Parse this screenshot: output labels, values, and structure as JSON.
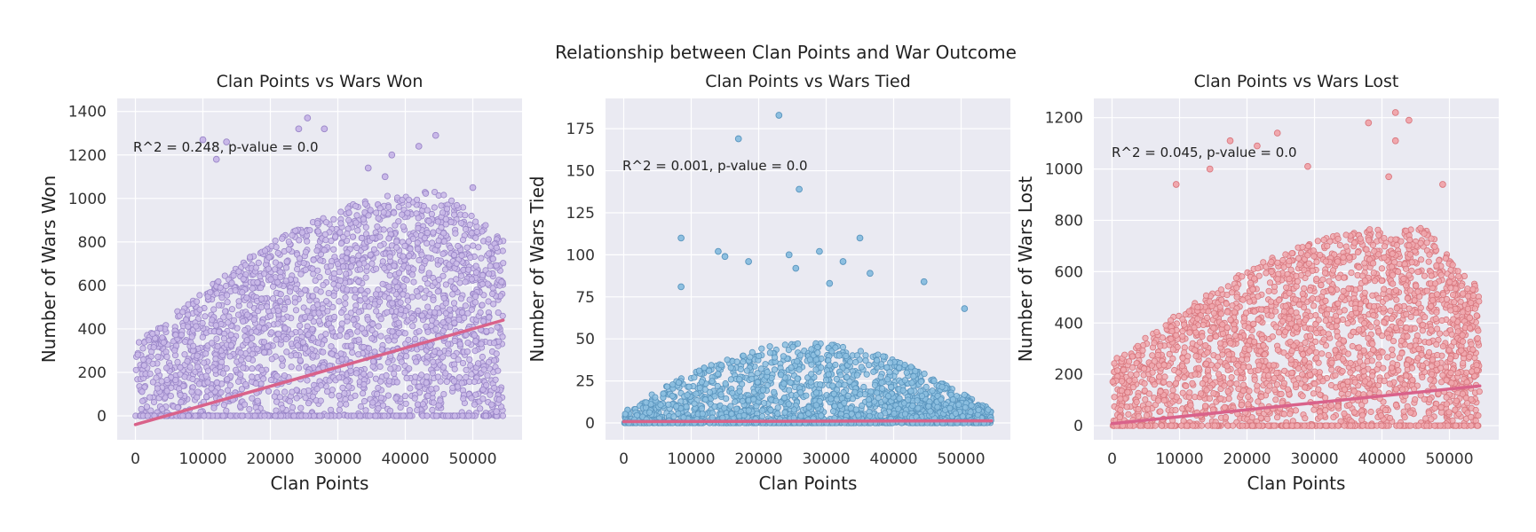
{
  "figure": {
    "title": "Relationship between Clan Points and War Outcome"
  },
  "chart_data": [
    {
      "type": "scatter",
      "title": "Clan Points vs Wars Won",
      "xlabel": "Clan Points",
      "ylabel": "Number of Wars Won",
      "xlim": [
        -2700,
        57300
      ],
      "ylim": [
        -110,
        1460
      ],
      "x_ticks": [
        0,
        10000,
        20000,
        30000,
        40000,
        50000
      ],
      "y_ticks": [
        0,
        200,
        400,
        600,
        800,
        1000,
        1200,
        1400
      ],
      "annotation": "R^2 = 0.248, p-value = 0.0",
      "point_color": "#c9b8e8",
      "point_edge_color": "#9a86c8",
      "line_color": "#d9628a",
      "regression_line": {
        "x": [
          0,
          54500
        ],
        "y": [
          -40,
          440
        ]
      },
      "notable_points": [
        {
          "x": 25500,
          "y": 1370
        },
        {
          "x": 24200,
          "y": 1320
        },
        {
          "x": 28000,
          "y": 1320
        },
        {
          "x": 44500,
          "y": 1290
        },
        {
          "x": 10000,
          "y": 1270
        },
        {
          "x": 13500,
          "y": 1260
        },
        {
          "x": 38000,
          "y": 1200
        },
        {
          "x": 42000,
          "y": 1240
        },
        {
          "x": 12000,
          "y": 1180
        },
        {
          "x": 34500,
          "y": 1140
        },
        {
          "x": 37000,
          "y": 1100
        },
        {
          "x": 50000,
          "y": 1050
        },
        {
          "x": 53500,
          "y": 20
        }
      ],
      "grid": true
    },
    {
      "type": "scatter",
      "title": "Clan Points vs Wars Tied",
      "xlabel": "Clan Points",
      "ylabel": "Number of Wars Tied",
      "xlim": [
        -2700,
        57300
      ],
      "ylim": [
        -10,
        193
      ],
      "x_ticks": [
        0,
        10000,
        20000,
        30000,
        40000,
        50000
      ],
      "y_ticks": [
        0,
        25,
        50,
        75,
        100,
        125,
        150,
        175
      ],
      "annotation": "R^2 = 0.001, p-value = 0.0",
      "point_color": "#8dbfe0",
      "point_edge_color": "#5a95be",
      "line_color": "#d9628a",
      "regression_line": {
        "x": [
          0,
          54500
        ],
        "y": [
          0.8,
          1.3
        ]
      },
      "notable_points": [
        {
          "x": 23000,
          "y": 183
        },
        {
          "x": 17000,
          "y": 169
        },
        {
          "x": 26000,
          "y": 139
        },
        {
          "x": 8500,
          "y": 110
        },
        {
          "x": 35000,
          "y": 110
        },
        {
          "x": 14000,
          "y": 102
        },
        {
          "x": 29000,
          "y": 102
        },
        {
          "x": 24500,
          "y": 100
        },
        {
          "x": 15000,
          "y": 99
        },
        {
          "x": 18500,
          "y": 96
        },
        {
          "x": 32500,
          "y": 96
        },
        {
          "x": 25500,
          "y": 92
        },
        {
          "x": 36500,
          "y": 89
        },
        {
          "x": 44500,
          "y": 84
        },
        {
          "x": 30500,
          "y": 83
        },
        {
          "x": 8500,
          "y": 81
        },
        {
          "x": 50500,
          "y": 68
        }
      ],
      "grid": true
    },
    {
      "type": "scatter",
      "title": "Clan Points vs Wars Lost",
      "xlabel": "Clan Points",
      "ylabel": "Number of Wars Lost",
      "xlim": [
        -2700,
        57300
      ],
      "ylim": [
        -55,
        1275
      ],
      "x_ticks": [
        0,
        10000,
        20000,
        30000,
        40000,
        50000
      ],
      "y_ticks": [
        0,
        200,
        400,
        600,
        800,
        1000,
        1200
      ],
      "annotation": "R^2 = 0.045, p-value = 0.0",
      "point_color": "#f0a8ae",
      "point_edge_color": "#d9787f",
      "line_color": "#d9628a",
      "regression_line": {
        "x": [
          0,
          54500
        ],
        "y": [
          8,
          155
        ]
      },
      "notable_points": [
        {
          "x": 42000,
          "y": 1220
        },
        {
          "x": 44000,
          "y": 1190
        },
        {
          "x": 38000,
          "y": 1180
        },
        {
          "x": 24500,
          "y": 1140
        },
        {
          "x": 17500,
          "y": 1110
        },
        {
          "x": 42000,
          "y": 1110
        },
        {
          "x": 21500,
          "y": 1090
        },
        {
          "x": 29000,
          "y": 1010
        },
        {
          "x": 14500,
          "y": 1000
        },
        {
          "x": 41000,
          "y": 970
        },
        {
          "x": 9500,
          "y": 940
        },
        {
          "x": 49000,
          "y": 940
        },
        {
          "x": 53000,
          "y": 420
        }
      ],
      "grid": true
    }
  ]
}
